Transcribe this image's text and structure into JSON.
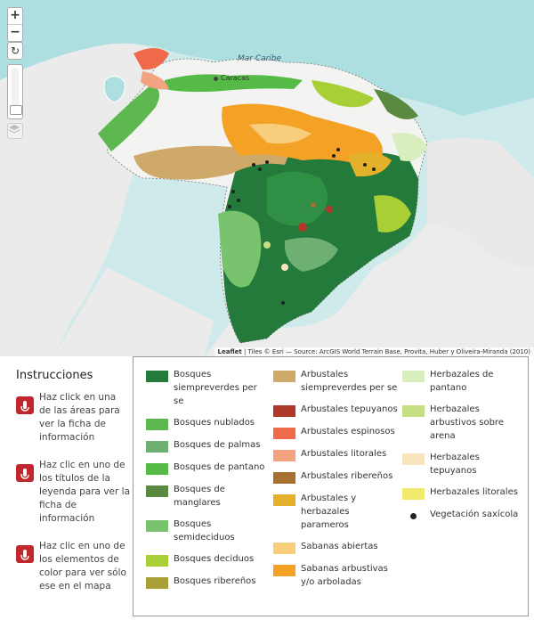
{
  "map": {
    "controls": {
      "zoom_in": "+",
      "zoom_out": "−",
      "reset_icon": "refresh-icon",
      "layers_icon": "layers-icon",
      "zoom_level_fraction": 0.0
    },
    "labels": {
      "sea": "Mar Caribe",
      "city": "Caracas"
    },
    "attribution": {
      "leaflet": "Leaflet",
      "text": " | Tiles © Esri — Source: ArcGIS World Terrain Base, Provita, Huber y Oliveira-Miranda (2010)"
    },
    "colors": {
      "sea": "#aedfe0",
      "land_background": "#e7e7e7",
      "venezuela_base": "#f2f2f0"
    }
  },
  "instructions": {
    "title": "Instrucciones",
    "items": [
      {
        "text": "Haz click en una de las áreas para ver la ficha de información",
        "icon": "tap-icon"
      },
      {
        "text": "Haz clic en uno de los títulos de la leyenda para ver la ficha de información",
        "icon": "tap-icon"
      },
      {
        "text": "Haz clic en uno de los elementos de color para ver sólo ese en el mapa",
        "icon": "tap-icon"
      }
    ]
  },
  "legend": {
    "columns": [
      [
        {
          "label": "Bosques siempreverdes per se",
          "color": "#237a3b"
        },
        {
          "label": "Bosques nublados",
          "color": "#5cb84f"
        },
        {
          "label": "Bosques de palmas",
          "color": "#6eaf72"
        },
        {
          "label": "Bosques de pantano",
          "color": "#55bb46"
        },
        {
          "label": "Bosques de manglares",
          "color": "#5a8a3f"
        },
        {
          "label": "Bosques semideciduos",
          "color": "#79c26e"
        },
        {
          "label": "Bosques deciduos",
          "color": "#a9cf36"
        },
        {
          "label": "Bosques ribereños",
          "color": "#a8a236"
        }
      ],
      [
        {
          "label": "Arbustales siempreverdes per se",
          "color": "#cfa96a"
        },
        {
          "label": "Arbustales tepuyanos",
          "color": "#b0382b"
        },
        {
          "label": "Arbustales espinosos",
          "color": "#f0694a"
        },
        {
          "label": "Arbustales litorales",
          "color": "#f3a380"
        },
        {
          "label": "Arbustales ribereños",
          "color": "#a87030"
        },
        {
          "label": "Arbustales y herbazales parameros",
          "color": "#e3b12a"
        },
        {
          "label": "Sabanas abiertas",
          "color": "#f8ce7d"
        },
        {
          "label": "Sabanas arbustivas y/o arboladas",
          "color": "#f3a225"
        }
      ],
      [
        {
          "label": "Herbazales de pantano",
          "color": "#d9eebf"
        },
        {
          "label": "Herbazales arbustivos sobre arena",
          "color": "#c5de82"
        },
        {
          "label": "Herbazales tepuyanos",
          "color": "#f8e5bd"
        },
        {
          "label": "Herbazales litorales",
          "color": "#f2ea6c"
        },
        {
          "label": "Vegetación saxícola",
          "color": "#222222",
          "dot": true
        }
      ]
    ]
  }
}
